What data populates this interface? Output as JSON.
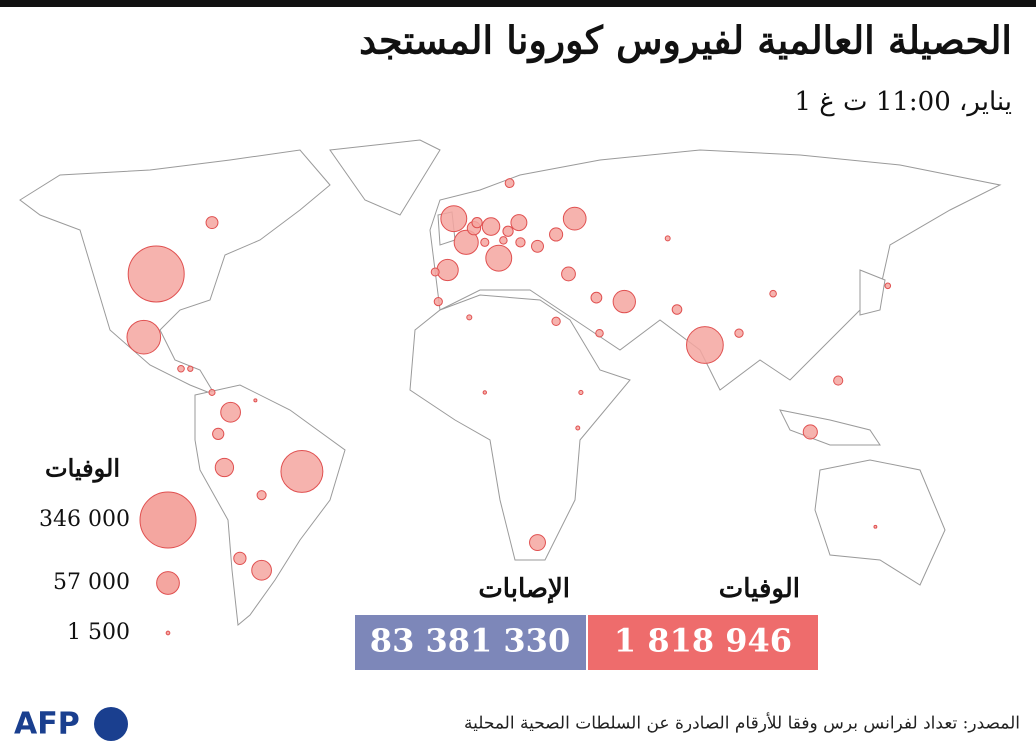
{
  "header": {
    "title": "الحصيلة العالمية لفيروس كورونا المستجد",
    "subtitle": "1 يناير، 11:00 ت غ"
  },
  "chart_data": {
    "type": "bubble-map",
    "legend_title": "الوفيات",
    "color": "#f4a6a0",
    "stroke": "#e05050",
    "size_ticks": [
      {
        "value": 346000,
        "label": "346 000"
      },
      {
        "value": 57000,
        "label": "57 000"
      },
      {
        "value": 1500,
        "label": "1 500"
      }
    ],
    "lon": [
      -98,
      -51,
      79,
      -102,
      12.5,
      -2,
      2,
      37,
      53,
      -4,
      -74,
      -64,
      -76,
      10,
      19,
      25,
      113,
      35,
      31,
      4.5,
      -71,
      25,
      -78,
      -80,
      44,
      5.5,
      15.5,
      70,
      31,
      -64,
      19.5,
      122,
      138,
      90,
      45,
      -7,
      101,
      -8,
      16,
      8,
      14,
      -90,
      -87,
      -80,
      -66,
      67,
      3,
      39,
      38,
      8,
      134
    ],
    "lat": [
      39,
      -11,
      21,
      23,
      43,
      53,
      47,
      53,
      32,
      40,
      4,
      -36,
      -10,
      51,
      52,
      -29,
      -1,
      39,
      49,
      50.6,
      -33,
      46,
      -1.5,
      52,
      33,
      52,
      49.8,
      30,
      27,
      -17,
      47,
      12,
      36,
      24,
      24,
      32,
      34,
      39.5,
      62,
      47,
      47.5,
      15,
      15,
      9,
      7,
      48,
      28,
      9,
      0,
      9,
      -25
    ],
    "values": [
      346000,
      194000,
      149000,
      125000,
      74000,
      74000,
      64000,
      57000,
      55000,
      50000,
      43000,
      43000,
      37000,
      34000,
      28000,
      28000,
      22000,
      21000,
      19000,
      19600,
      16600,
      15800,
      14000,
      15600,
      12800,
      11500,
      11600,
      10200,
      7700,
      9100,
      9500,
      9200,
      3400,
      7600,
      6200,
      7400,
      4800,
      7000,
      8700,
      7300,
      6200,
      4800,
      3100,
      4000,
      1000,
      2700,
      2800,
      1900,
      1700,
      1250,
      909
    ]
  },
  "totals": {
    "deaths_label": "الوفيات",
    "deaths": "1 818 946",
    "cases_label": "الإصابات",
    "cases": "83 381 330"
  },
  "footer": {
    "source": "المصدر: تعداد لفرانس برس وفقا للأرقام الصادرة عن السلطات الصحية المحلية",
    "logo": "AFP"
  }
}
